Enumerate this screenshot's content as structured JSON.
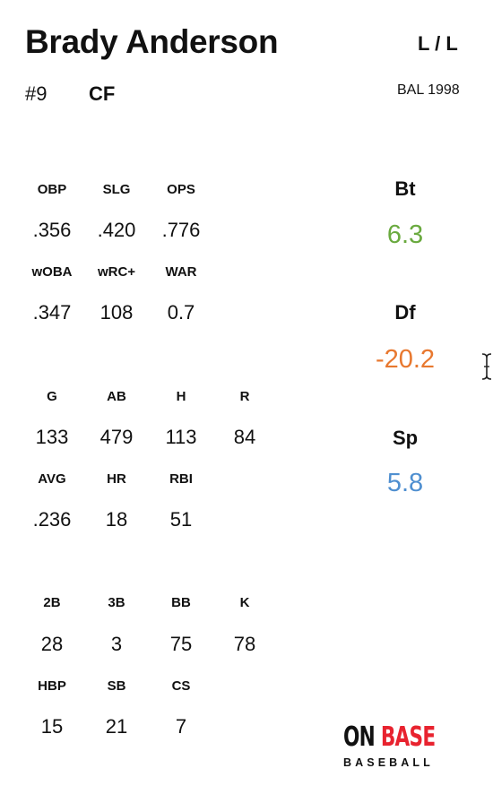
{
  "player": {
    "name": "Brady Anderson",
    "hands": "L / L",
    "number": "#9",
    "position": "CF",
    "team_year": "BAL 1998"
  },
  "advanced": {
    "row1": [
      {
        "label": "OBP",
        "value": ".356"
      },
      {
        "label": "SLG",
        "value": ".420"
      },
      {
        "label": "OPS",
        "value": ".776"
      }
    ],
    "row2": [
      {
        "label": "wOBA",
        "value": ".347"
      },
      {
        "label": "wRC+",
        "value": "108"
      },
      {
        "label": "WAR",
        "value": "0.7"
      }
    ]
  },
  "counting": {
    "row1": [
      {
        "label": "G",
        "value": "133"
      },
      {
        "label": "AB",
        "value": "479"
      },
      {
        "label": "H",
        "value": "113"
      },
      {
        "label": "R",
        "value": "84"
      }
    ],
    "row2": [
      {
        "label": "AVG",
        "value": ".236"
      },
      {
        "label": "HR",
        "value": "18"
      },
      {
        "label": "RBI",
        "value": "51"
      }
    ]
  },
  "misc": {
    "row1": [
      {
        "label": "2B",
        "value": "28"
      },
      {
        "label": "3B",
        "value": "3"
      },
      {
        "label": "BB",
        "value": "75"
      },
      {
        "label": "K",
        "value": "78"
      }
    ],
    "row2": [
      {
        "label": "HBP",
        "value": "15"
      },
      {
        "label": "SB",
        "value": "21"
      },
      {
        "label": "CS",
        "value": "7"
      }
    ]
  },
  "ratings": [
    {
      "label": "Bt",
      "value": "6.3",
      "color": "#6aaa3f"
    },
    {
      "label": "Df",
      "value": "-20.2",
      "color": "#e8782f"
    },
    {
      "label": "Sp",
      "value": "5.8",
      "color": "#4f8fd0"
    }
  ],
  "logo": {
    "word1": "ON",
    "word2": "BASE",
    "sub": "BASEBALL",
    "accent_color": "#e8232f"
  },
  "icons": {
    "cursor": "text-cursor-icon"
  }
}
